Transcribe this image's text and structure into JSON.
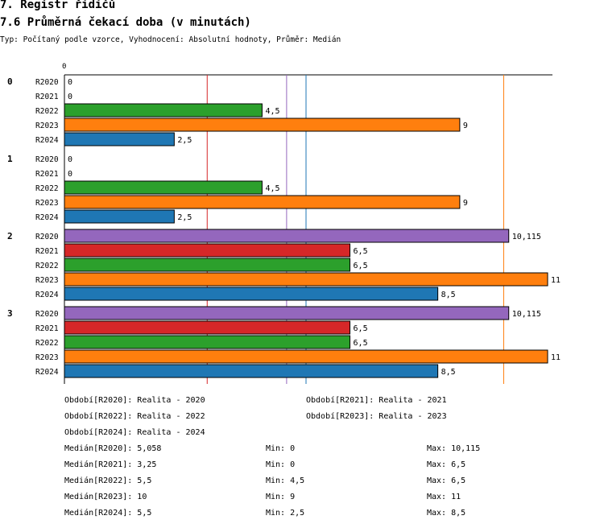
{
  "header": {
    "title": "7. Registr řidičů",
    "subtitle": "7.6 Průměrná čekací doba (v minutách)",
    "meta": "Typ: Počítaný podle vzorce, Vyhodnocení: Absolutní hodnoty, Průměr: Medián"
  },
  "colors": {
    "R2020": "#9467bd",
    "R2021": "#d62728",
    "R2022": "#2ca02c",
    "R2023": "#ff7f0e",
    "R2024": "#1f77b4"
  },
  "chart_data": {
    "type": "bar",
    "orientation": "horizontal",
    "x_tick_labels": [
      "0"
    ],
    "xlim": [
      0,
      11
    ],
    "groups": [
      "0",
      "1",
      "2",
      "3"
    ],
    "series_names": [
      "R2020",
      "R2021",
      "R2022",
      "R2023",
      "R2024"
    ],
    "values": [
      [
        0,
        0,
        4.5,
        9,
        2.5
      ],
      [
        0,
        0,
        4.5,
        9,
        2.5
      ],
      [
        10.115,
        6.5,
        6.5,
        11,
        8.5
      ],
      [
        10.115,
        6.5,
        6.5,
        11,
        8.5
      ]
    ],
    "value_labels": [
      [
        "0",
        "0",
        "4,5",
        "9",
        "2,5"
      ],
      [
        "0",
        "0",
        "4,5",
        "9",
        "2,5"
      ],
      [
        "10,115",
        "6,5",
        "6,5",
        "11",
        "8,5"
      ],
      [
        "10,115",
        "6,5",
        "6,5",
        "11",
        "8,5"
      ]
    ],
    "reference_lines": [
      {
        "series": "R2020",
        "value": 5.058
      },
      {
        "series": "R2021",
        "value": 3.25
      },
      {
        "series": "R2022",
        "value": 5.5
      },
      {
        "series": "R2023",
        "value": 10
      },
      {
        "series": "R2024",
        "value": 5.5
      }
    ]
  },
  "legend": {
    "periods": [
      "Období[R2020]: Realita - 2020",
      "Období[R2021]: Realita - 2021",
      "Období[R2022]: Realita - 2022",
      "Období[R2023]: Realita - 2023",
      "Období[R2024]: Realita - 2024"
    ],
    "stats": [
      {
        "median": "Medián[R2020]: 5,058",
        "min": "Min: 0",
        "max": "Max: 10,115"
      },
      {
        "median": "Medián[R2021]: 3,25",
        "min": "Min: 0",
        "max": "Max: 6,5"
      },
      {
        "median": "Medián[R2022]: 5,5",
        "min": "Min: 4,5",
        "max": "Max: 6,5"
      },
      {
        "median": "Medián[R2023]: 10",
        "min": "Min: 9",
        "max": "Max: 11"
      },
      {
        "median": "Medián[R2024]: 5,5",
        "min": "Min: 2,5",
        "max": "Max: 8,5"
      }
    ]
  }
}
